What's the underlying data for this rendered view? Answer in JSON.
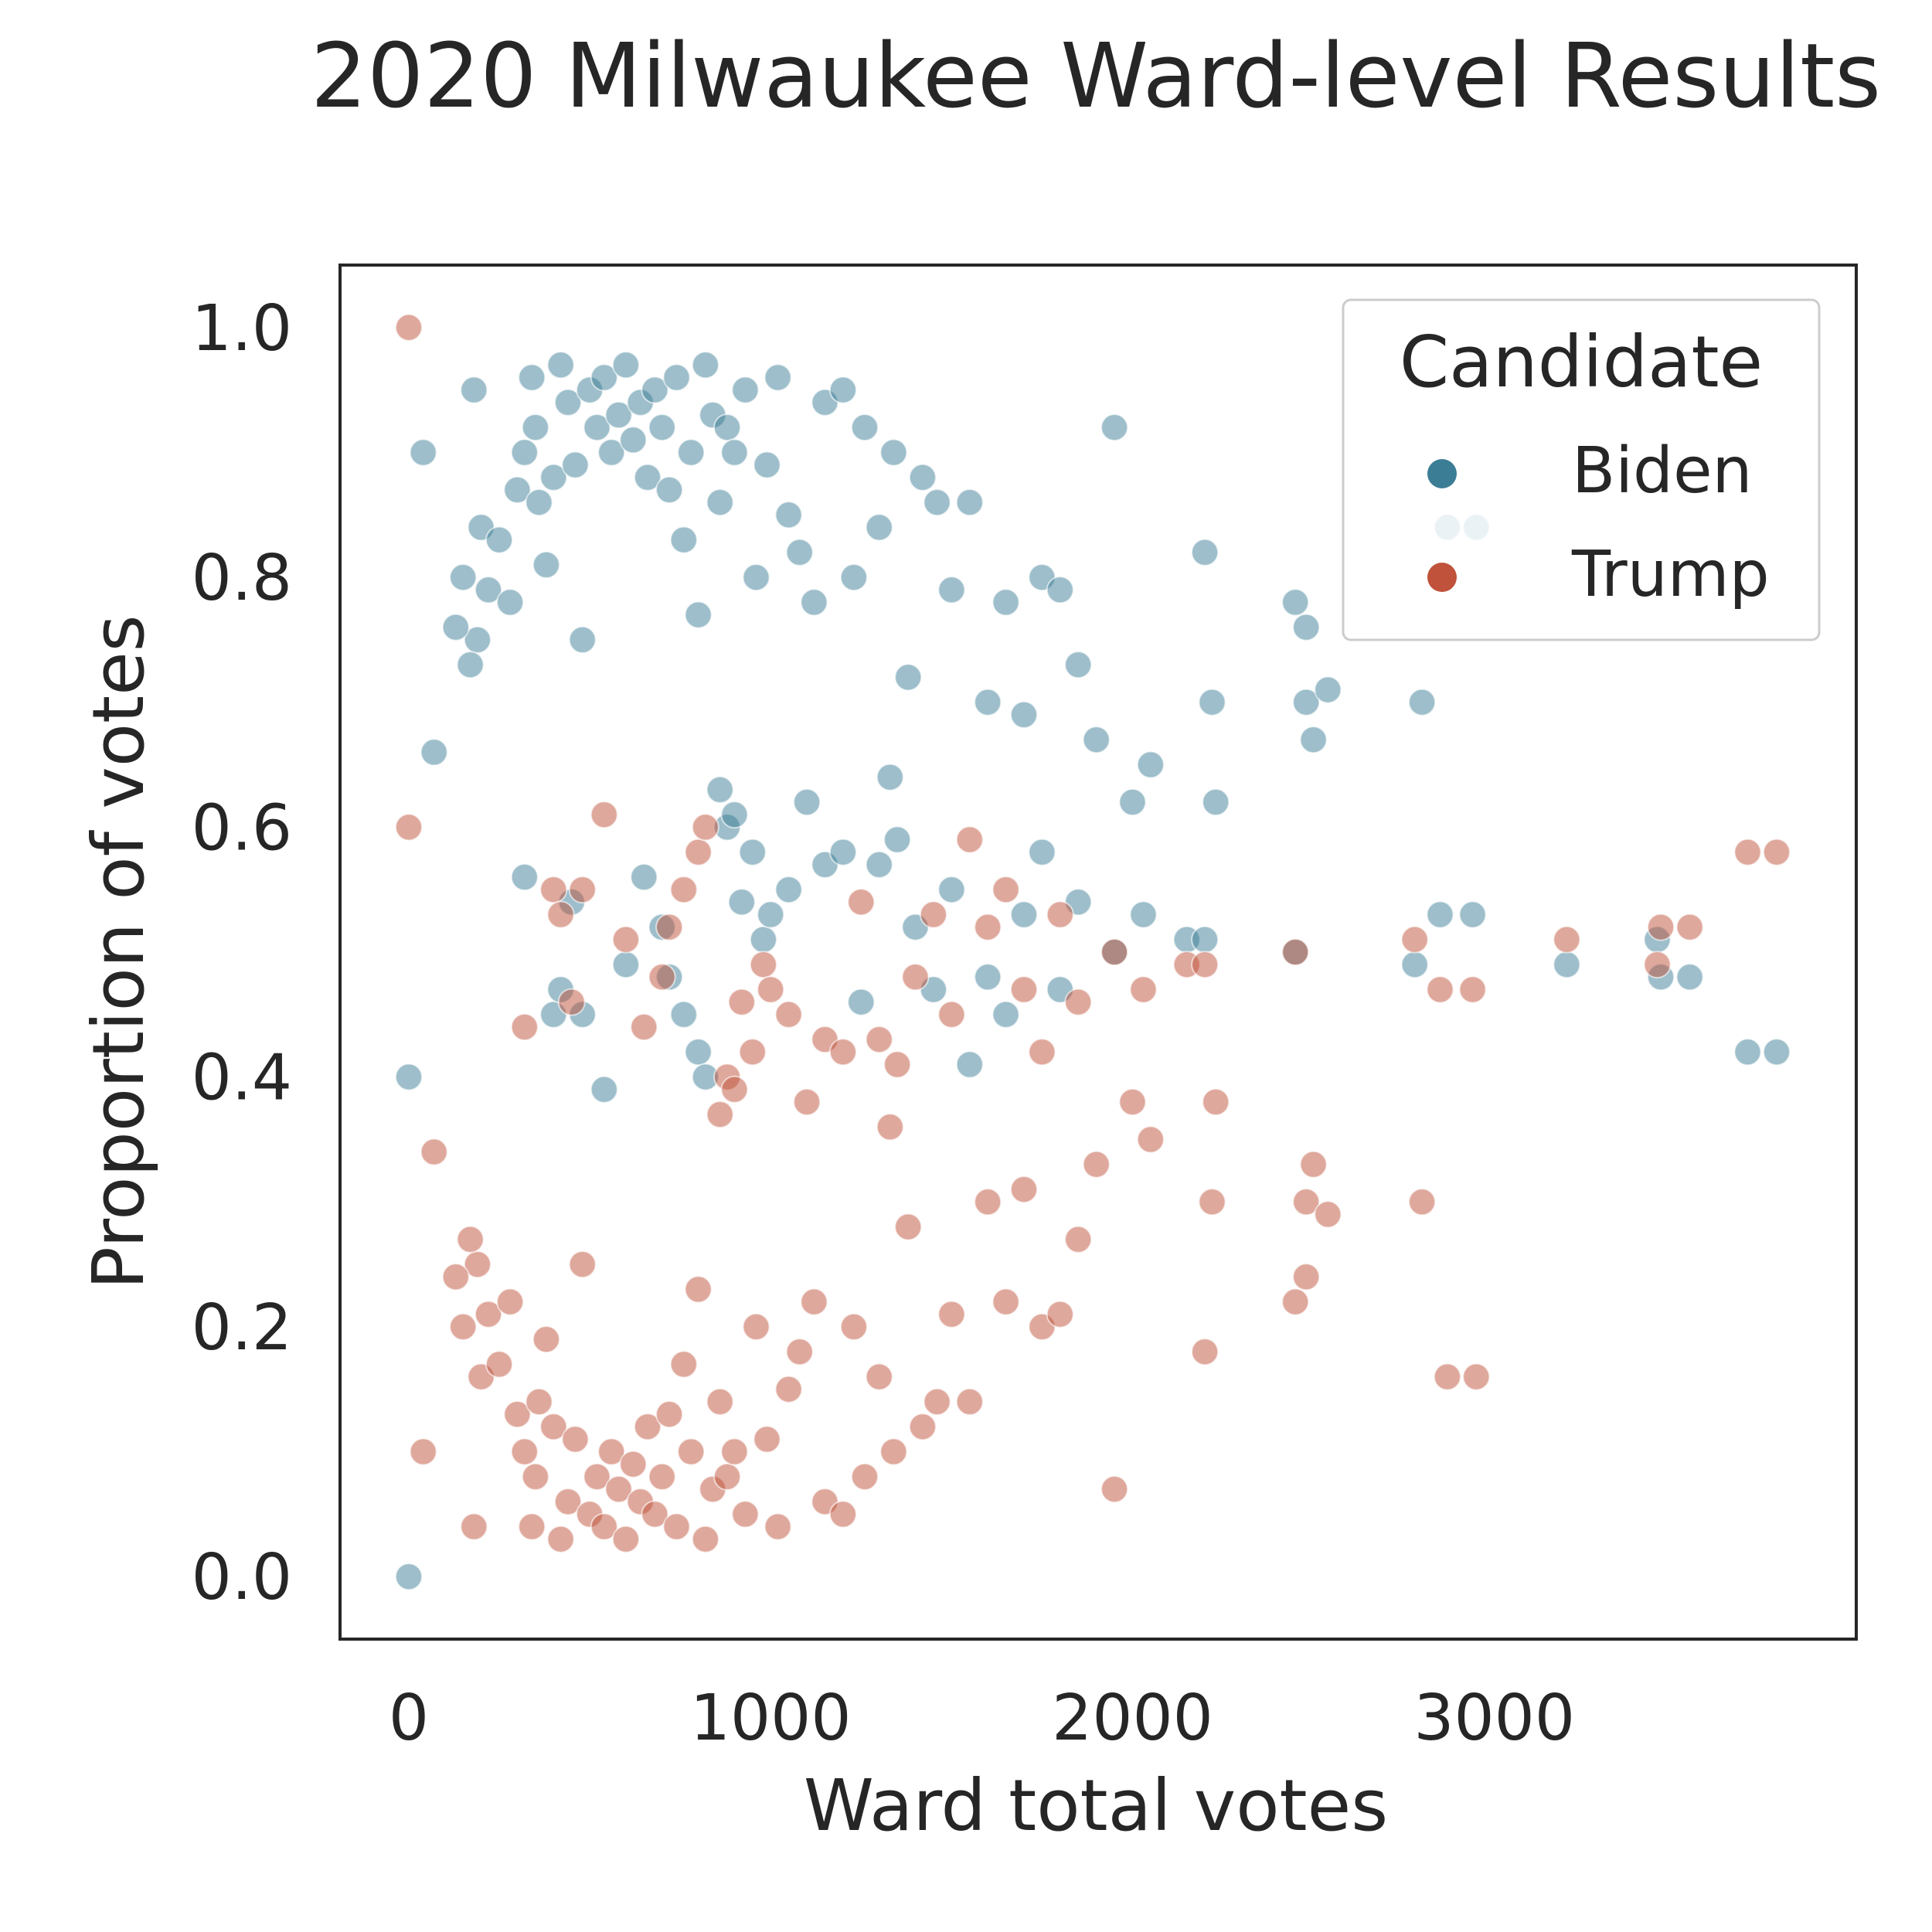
{
  "chart_data": {
    "type": "scatter",
    "title": "2020 Milwaukee Ward-level Results",
    "xlabel": "Ward total votes",
    "ylabel": "Proportion of votes",
    "xlim": [
      -190,
      4000
    ],
    "ylim": [
      -0.05,
      1.05
    ],
    "xticks": [
      0,
      1000,
      2000,
      3000
    ],
    "xtick_labels": [
      "0",
      "1000",
      "2000",
      "3000"
    ],
    "yticks": [
      0.0,
      0.2,
      0.4,
      0.6,
      0.8,
      1.0
    ],
    "ytick_labels": [
      "0.0",
      "0.2",
      "0.4",
      "0.6",
      "0.8",
      "1.0"
    ],
    "grid": false,
    "legend": {
      "title": "Candidate",
      "placement": "top-right"
    },
    "series": [
      {
        "name": "Biden",
        "color": "#3b7d95",
        "points": [
          [
            0,
            0.0
          ],
          [
            0,
            0.4
          ],
          [
            40,
            0.9
          ],
          [
            70,
            0.66
          ],
          [
            180,
            0.95
          ],
          [
            200,
            0.84
          ],
          [
            190,
            0.75
          ],
          [
            130,
            0.76
          ],
          [
            150,
            0.8
          ],
          [
            170,
            0.73
          ],
          [
            220,
            0.79
          ],
          [
            250,
            0.83
          ],
          [
            280,
            0.78
          ],
          [
            300,
            0.87
          ],
          [
            320,
            0.9
          ],
          [
            340,
            0.96
          ],
          [
            350,
            0.92
          ],
          [
            360,
            0.86
          ],
          [
            380,
            0.81
          ],
          [
            400,
            0.88
          ],
          [
            420,
            0.97
          ],
          [
            440,
            0.94
          ],
          [
            460,
            0.89
          ],
          [
            480,
            0.75
          ],
          [
            500,
            0.95
          ],
          [
            520,
            0.92
          ],
          [
            540,
            0.96
          ],
          [
            560,
            0.9
          ],
          [
            580,
            0.93
          ],
          [
            600,
            0.97
          ],
          [
            620,
            0.91
          ],
          [
            640,
            0.94
          ],
          [
            660,
            0.88
          ],
          [
            680,
            0.95
          ],
          [
            700,
            0.92
          ],
          [
            720,
            0.87
          ],
          [
            740,
            0.96
          ],
          [
            760,
            0.83
          ],
          [
            780,
            0.9
          ],
          [
            800,
            0.77
          ],
          [
            820,
            0.97
          ],
          [
            840,
            0.93
          ],
          [
            860,
            0.86
          ],
          [
            880,
            0.92
          ],
          [
            900,
            0.9
          ],
          [
            930,
            0.95
          ],
          [
            960,
            0.8
          ],
          [
            990,
            0.89
          ],
          [
            1020,
            0.96
          ],
          [
            1050,
            0.85
          ],
          [
            1080,
            0.82
          ],
          [
            1120,
            0.78
          ],
          [
            1150,
            0.94
          ],
          [
            1200,
            0.95
          ],
          [
            1230,
            0.8
          ],
          [
            1260,
            0.92
          ],
          [
            1300,
            0.84
          ],
          [
            1340,
            0.9
          ],
          [
            1380,
            0.72
          ],
          [
            1420,
            0.88
          ],
          [
            1460,
            0.86
          ],
          [
            1500,
            0.79
          ],
          [
            1550,
            0.86
          ],
          [
            1600,
            0.7
          ],
          [
            1650,
            0.78
          ],
          [
            1700,
            0.69
          ],
          [
            1750,
            0.8
          ],
          [
            1800,
            0.79
          ],
          [
            1850,
            0.73
          ],
          [
            1900,
            0.67
          ],
          [
            1950,
            0.92
          ],
          [
            2000,
            0.62
          ],
          [
            2050,
            0.65
          ],
          [
            2200,
            0.82
          ],
          [
            2220,
            0.7
          ],
          [
            2230,
            0.62
          ],
          [
            2450,
            0.78
          ],
          [
            2480,
            0.76
          ],
          [
            2480,
            0.7
          ],
          [
            2500,
            0.67
          ],
          [
            2540,
            0.71
          ],
          [
            2800,
            0.7
          ],
          [
            320,
            0.56
          ],
          [
            400,
            0.45
          ],
          [
            420,
            0.47
          ],
          [
            450,
            0.54
          ],
          [
            480,
            0.45
          ],
          [
            540,
            0.39
          ],
          [
            600,
            0.49
          ],
          [
            650,
            0.56
          ],
          [
            700,
            0.52
          ],
          [
            720,
            0.48
          ],
          [
            760,
            0.45
          ],
          [
            800,
            0.42
          ],
          [
            820,
            0.4
          ],
          [
            860,
            0.63
          ],
          [
            880,
            0.6
          ],
          [
            900,
            0.61
          ],
          [
            920,
            0.54
          ],
          [
            950,
            0.58
          ],
          [
            980,
            0.51
          ],
          [
            1000,
            0.53
          ],
          [
            1050,
            0.55
          ],
          [
            1100,
            0.62
          ],
          [
            1150,
            0.57
          ],
          [
            1200,
            0.58
          ],
          [
            1250,
            0.46
          ],
          [
            1300,
            0.57
          ],
          [
            1330,
            0.64
          ],
          [
            1350,
            0.59
          ],
          [
            1400,
            0.52
          ],
          [
            1450,
            0.47
          ],
          [
            1500,
            0.55
          ],
          [
            1550,
            0.41
          ],
          [
            1600,
            0.48
          ],
          [
            1650,
            0.45
          ],
          [
            1700,
            0.53
          ],
          [
            1750,
            0.58
          ],
          [
            1800,
            0.47
          ],
          [
            1850,
            0.54
          ],
          [
            1950,
            0.5
          ],
          [
            2030,
            0.53
          ],
          [
            2150,
            0.51
          ],
          [
            2200,
            0.51
          ],
          [
            2450,
            0.5
          ],
          [
            2780,
            0.49
          ],
          [
            2850,
            0.53
          ],
          [
            2940,
            0.53
          ],
          [
            3200,
            0.49
          ],
          [
            3450,
            0.51
          ],
          [
            3460,
            0.48
          ],
          [
            3540,
            0.48
          ],
          [
            3700,
            0.42
          ],
          [
            3780,
            0.42
          ],
          [
            2870,
            0.84
          ],
          [
            2950,
            0.84
          ]
        ]
      },
      {
        "name": "Trump",
        "color": "#c0513a",
        "points": [
          [
            0,
            1.0
          ],
          [
            0,
            0.6
          ],
          [
            40,
            0.1
          ],
          [
            70,
            0.34
          ],
          [
            180,
            0.04
          ],
          [
            200,
            0.16
          ],
          [
            190,
            0.25
          ],
          [
            130,
            0.24
          ],
          [
            150,
            0.2
          ],
          [
            170,
            0.27
          ],
          [
            220,
            0.21
          ],
          [
            250,
            0.17
          ],
          [
            280,
            0.22
          ],
          [
            300,
            0.13
          ],
          [
            320,
            0.1
          ],
          [
            340,
            0.04
          ],
          [
            350,
            0.08
          ],
          [
            360,
            0.14
          ],
          [
            380,
            0.19
          ],
          [
            400,
            0.12
          ],
          [
            420,
            0.03
          ],
          [
            440,
            0.06
          ],
          [
            460,
            0.11
          ],
          [
            480,
            0.25
          ],
          [
            500,
            0.05
          ],
          [
            520,
            0.08
          ],
          [
            540,
            0.04
          ],
          [
            560,
            0.1
          ],
          [
            580,
            0.07
          ],
          [
            600,
            0.03
          ],
          [
            620,
            0.09
          ],
          [
            640,
            0.06
          ],
          [
            660,
            0.12
          ],
          [
            680,
            0.05
          ],
          [
            700,
            0.08
          ],
          [
            720,
            0.13
          ],
          [
            740,
            0.04
          ],
          [
            760,
            0.17
          ],
          [
            780,
            0.1
          ],
          [
            800,
            0.23
          ],
          [
            820,
            0.03
          ],
          [
            840,
            0.07
          ],
          [
            860,
            0.14
          ],
          [
            880,
            0.08
          ],
          [
            900,
            0.1
          ],
          [
            930,
            0.05
          ],
          [
            960,
            0.2
          ],
          [
            990,
            0.11
          ],
          [
            1020,
            0.04
          ],
          [
            1050,
            0.15
          ],
          [
            1080,
            0.18
          ],
          [
            1120,
            0.22
          ],
          [
            1150,
            0.06
          ],
          [
            1200,
            0.05
          ],
          [
            1230,
            0.2
          ],
          [
            1260,
            0.08
          ],
          [
            1300,
            0.16
          ],
          [
            1340,
            0.1
          ],
          [
            1380,
            0.28
          ],
          [
            1420,
            0.12
          ],
          [
            1460,
            0.14
          ],
          [
            1500,
            0.21
          ],
          [
            1550,
            0.14
          ],
          [
            1600,
            0.3
          ],
          [
            1650,
            0.22
          ],
          [
            1700,
            0.31
          ],
          [
            1750,
            0.2
          ],
          [
            1800,
            0.21
          ],
          [
            1850,
            0.27
          ],
          [
            1900,
            0.33
          ],
          [
            1950,
            0.07
          ],
          [
            2000,
            0.38
          ],
          [
            2050,
            0.35
          ],
          [
            2200,
            0.18
          ],
          [
            2220,
            0.3
          ],
          [
            2230,
            0.38
          ],
          [
            2450,
            0.22
          ],
          [
            2480,
            0.24
          ],
          [
            2480,
            0.3
          ],
          [
            2500,
            0.33
          ],
          [
            2540,
            0.29
          ],
          [
            2800,
            0.3
          ],
          [
            320,
            0.44
          ],
          [
            400,
            0.55
          ],
          [
            420,
            0.53
          ],
          [
            450,
            0.46
          ],
          [
            480,
            0.55
          ],
          [
            540,
            0.61
          ],
          [
            600,
            0.51
          ],
          [
            650,
            0.44
          ],
          [
            700,
            0.48
          ],
          [
            720,
            0.52
          ],
          [
            760,
            0.55
          ],
          [
            800,
            0.58
          ],
          [
            820,
            0.6
          ],
          [
            860,
            0.37
          ],
          [
            880,
            0.4
          ],
          [
            900,
            0.39
          ],
          [
            920,
            0.46
          ],
          [
            950,
            0.42
          ],
          [
            980,
            0.49
          ],
          [
            1000,
            0.47
          ],
          [
            1050,
            0.45
          ],
          [
            1100,
            0.38
          ],
          [
            1150,
            0.43
          ],
          [
            1200,
            0.42
          ],
          [
            1250,
            0.54
          ],
          [
            1300,
            0.43
          ],
          [
            1330,
            0.36
          ],
          [
            1350,
            0.41
          ],
          [
            1400,
            0.48
          ],
          [
            1450,
            0.53
          ],
          [
            1500,
            0.45
          ],
          [
            1550,
            0.59
          ],
          [
            1600,
            0.52
          ],
          [
            1650,
            0.55
          ],
          [
            1700,
            0.47
          ],
          [
            1750,
            0.42
          ],
          [
            1800,
            0.53
          ],
          [
            1850,
            0.46
          ],
          [
            1950,
            0.5
          ],
          [
            2030,
            0.47
          ],
          [
            2150,
            0.49
          ],
          [
            2200,
            0.49
          ],
          [
            2450,
            0.5
          ],
          [
            2780,
            0.51
          ],
          [
            2850,
            0.47
          ],
          [
            2940,
            0.47
          ],
          [
            3200,
            0.51
          ],
          [
            3450,
            0.49
          ],
          [
            3460,
            0.52
          ],
          [
            3540,
            0.52
          ],
          [
            3700,
            0.58
          ],
          [
            3780,
            0.58
          ],
          [
            2870,
            0.16
          ],
          [
            2950,
            0.16
          ]
        ]
      }
    ]
  }
}
